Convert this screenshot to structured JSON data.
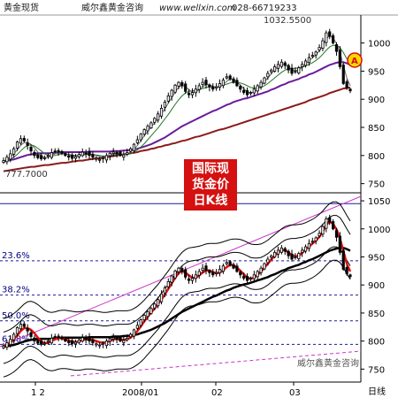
{
  "header": {
    "left": "黄金现货",
    "company": "威尔鑫黄金咨询",
    "website": "www.wellxin.com",
    "phone": "028-66719233"
  },
  "badge": [
    "国际现",
    "货金价",
    "日K线"
  ],
  "chart_data": [
    {
      "type": "candlestick",
      "title": "",
      "ylim": [
        740,
        1045
      ],
      "yticks": [
        750,
        800,
        850,
        900,
        950,
        1000
      ],
      "annotations": {
        "high_label": "1032.5500",
        "low_label": "777.7000",
        "marker": "A"
      },
      "close": [
        791,
        797,
        803,
        812,
        824,
        830,
        826,
        818,
        808,
        800,
        796,
        794,
        796,
        800,
        805,
        808,
        806,
        804,
        800,
        797,
        795,
        798,
        802,
        806,
        803,
        800,
        797,
        795,
        793,
        796,
        800,
        804,
        806,
        803,
        800,
        801,
        805,
        812,
        820,
        828,
        838,
        846,
        852,
        858,
        866,
        874,
        884,
        895,
        906,
        916,
        925,
        930,
        924,
        914,
        908,
        912,
        918,
        924,
        930,
        926,
        922,
        918,
        922,
        928,
        934,
        940,
        936,
        930,
        924,
        918,
        912,
        908,
        912,
        918,
        924,
        930,
        938,
        946,
        952,
        958,
        962,
        966,
        960,
        952,
        946,
        950,
        956,
        962,
        968,
        974,
        978,
        984,
        992,
        1004,
        1018,
        1012,
        1000,
        985,
        958,
        928,
        920,
        915
      ],
      "overlays": [
        {
          "name": "",
          "kind": "ma-short",
          "color": "#666666",
          "values": [
            790,
            793,
            797,
            803,
            810,
            818,
            823,
            823,
            820,
            814,
            806,
            799,
            796,
            797,
            800,
            803,
            805,
            805,
            803,
            801,
            799,
            798,
            799,
            802,
            803,
            803,
            802,
            800,
            798,
            797,
            798,
            800,
            803,
            804,
            803,
            802,
            803,
            806,
            811,
            818,
            826,
            835,
            843,
            851,
            858,
            866,
            874,
            883,
            893,
            903,
            913,
            921,
            925,
            922,
            917,
            913,
            913,
            917,
            922,
            926,
            926,
            923,
            921,
            922,
            926,
            932,
            936,
            935,
            931,
            925,
            919,
            913,
            911,
            913,
            918,
            924,
            931,
            938,
            945,
            952,
            958,
            962,
            962,
            958,
            953,
            951,
            952,
            957,
            963,
            968,
            974,
            979,
            986,
            995,
            1007,
            1013,
            1009,
            999,
            983,
            961,
            938,
            924
          ]
        },
        {
          "name": "",
          "kind": "ma-mid",
          "color": "#227722",
          "values": [
            788,
            790,
            793,
            797,
            802,
            808,
            814,
            818,
            819,
            817,
            813,
            808,
            803,
            800,
            799,
            800,
            802,
            803,
            803,
            802,
            801,
            800,
            800,
            801,
            802,
            802,
            802,
            801,
            800,
            799,
            799,
            800,
            801,
            802,
            802,
            802,
            802,
            803,
            806,
            810,
            815,
            821,
            828,
            835,
            842,
            849,
            857,
            865,
            873,
            882,
            891,
            899,
            906,
            911,
            914,
            915,
            916,
            917,
            919,
            921,
            922,
            922,
            922,
            923,
            925,
            927,
            929,
            930,
            930,
            929,
            927,
            924,
            921,
            920,
            920,
            921,
            924,
            928,
            933,
            938,
            943,
            948,
            952,
            954,
            955,
            955,
            956,
            957,
            959,
            962,
            965,
            969,
            974,
            980,
            987,
            993,
            996,
            996,
            992,
            983,
            972,
            962
          ]
        },
        {
          "name": "",
          "kind": "ma-long",
          "color": "#6a1b9a",
          "values": [
            790,
            791,
            792,
            793,
            795,
            797,
            799,
            801,
            802,
            803,
            804,
            804,
            804,
            804,
            804,
            805,
            805,
            806,
            806,
            806,
            806,
            806,
            806,
            806,
            806,
            807,
            807,
            807,
            807,
            807,
            807,
            807,
            808,
            808,
            808,
            809,
            809,
            810,
            811,
            812,
            814,
            816,
            818,
            820,
            823,
            826,
            829,
            832,
            836,
            840,
            844,
            848,
            852,
            855,
            858,
            861,
            864,
            867,
            870,
            873,
            876,
            879,
            881,
            884,
            887,
            890,
            892,
            895,
            897,
            899,
            901,
            902,
            904,
            906,
            908,
            910,
            912,
            914,
            917,
            919,
            922,
            925,
            927,
            930,
            932,
            934,
            936,
            939,
            941,
            944,
            946,
            949,
            952,
            955,
            958,
            961,
            963,
            965,
            966,
            966,
            964,
            961
          ]
        },
        {
          "name": "",
          "kind": "ma-trend",
          "color": "#8b1a1a",
          "values": [
            772,
            773,
            774,
            775,
            776,
            777,
            778,
            779,
            780,
            780,
            781,
            782,
            783,
            783,
            784,
            785,
            786,
            787,
            787,
            788,
            789,
            790,
            791,
            791,
            792,
            793,
            794,
            795,
            795,
            796,
            797,
            798,
            799,
            800,
            801,
            802,
            803,
            804,
            805,
            806,
            808,
            809,
            810,
            812,
            813,
            815,
            816,
            818,
            819,
            821,
            822,
            824,
            826,
            827,
            829,
            831,
            833,
            834,
            836,
            838,
            840,
            842,
            844,
            846,
            847,
            849,
            851,
            853,
            855,
            857,
            859,
            861,
            863,
            865,
            867,
            869,
            871,
            873,
            875,
            877,
            879,
            881,
            883,
            885,
            887,
            889,
            891,
            893,
            895,
            898,
            900,
            902,
            904,
            906,
            908,
            911,
            913,
            915,
            917,
            919,
            920,
            921
          ]
        }
      ]
    },
    {
      "type": "candlestick",
      "title": "",
      "ylim": [
        730,
        1058
      ],
      "yticks": [
        750,
        800,
        850,
        900,
        950,
        1000,
        1050
      ],
      "xticks": [
        "1 2",
        "2008/01",
        "02",
        "03"
      ],
      "x_axis_unit": "日线",
      "fib_levels": [
        {
          "label": "23.6%",
          "price": 943
        },
        {
          "label": "38.2%",
          "price": 882
        },
        {
          "label": "50.0%",
          "price": 836
        },
        {
          "label": "61.8%",
          "price": 794
        }
      ],
      "watermark": "威尔鑫黄金咨询"
    }
  ]
}
